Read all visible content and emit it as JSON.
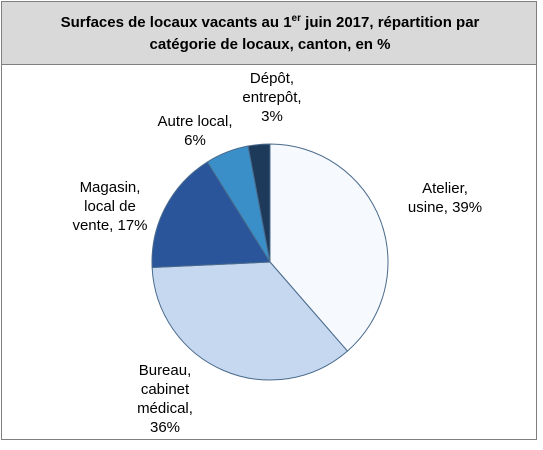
{
  "chart_data": {
    "type": "pie",
    "title": [
      "Surfaces de locaux vacants au 1",
      "er",
      " juin 2017, répartition par",
      "catégorie de locaux, canton, en %"
    ],
    "values": [
      39,
      36,
      17,
      6,
      3
    ],
    "value_labels": [
      [
        "Atelier,",
        "usine, 39%"
      ],
      [
        "Bureau,",
        "cabinet",
        "médical,",
        "36%"
      ],
      [
        "Magasin,",
        "local de",
        "vente, 17%"
      ],
      [
        "Autre local,",
        "6%"
      ],
      [
        "Dépôt,",
        "entrepôt,",
        "3%"
      ]
    ],
    "colors": [
      "#f6f9fd",
      "#c5d8f0",
      "#2b559b",
      "#3b8fc8",
      "#1e3a5b"
    ]
  }
}
